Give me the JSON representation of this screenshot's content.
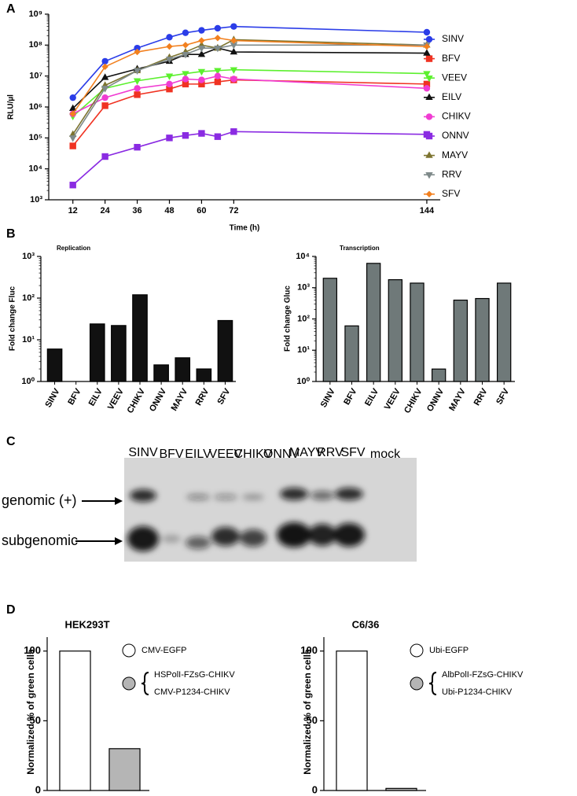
{
  "panel_labels": [
    "A",
    "B",
    "C",
    "D"
  ],
  "chart_data": [
    {
      "type": "line",
      "xlabel": "Time (h)",
      "ylabel": "RLU/µl",
      "yscale": "log",
      "x": [
        12,
        24,
        36,
        48,
        54,
        60,
        66,
        72,
        144
      ],
      "xlim": [
        3,
        149
      ],
      "xticks": [
        12,
        24,
        36,
        48,
        60,
        72,
        144
      ],
      "ylim": [
        1000,
        1000000000
      ],
      "yticks": [
        {
          "value": 1000,
          "label": "10³"
        },
        {
          "value": 10000,
          "label": "10⁴"
        },
        {
          "value": 100000,
          "label": "10⁵"
        },
        {
          "value": 1000000,
          "label": "10⁶"
        },
        {
          "value": 10000000,
          "label": "10⁷"
        },
        {
          "value": 100000000,
          "label": "10⁸"
        },
        {
          "value": 1000000000,
          "label": "10⁹"
        }
      ],
      "series": [
        {
          "name": "SINV",
          "color": "#2b3de8",
          "marker": "circle",
          "values": [
            2000000,
            30000000,
            80000000,
            180000000,
            250000000,
            300000000,
            350000000,
            400000000,
            260000000
          ]
        },
        {
          "name": "BFV",
          "color": "#f03222",
          "marker": "square",
          "values": [
            55000,
            1100000,
            2500000,
            3800000,
            5500000,
            5500000,
            6500000,
            7500000,
            5500000
          ]
        },
        {
          "name": "VEEV",
          "color": "#5cf02e",
          "marker": "triangle-down",
          "values": [
            500000,
            4000000,
            7000000,
            10000000,
            12000000,
            14000000,
            15000000,
            16000000,
            12000000
          ]
        },
        {
          "name": "EILV",
          "color": "#111111",
          "marker": "triangle-up",
          "values": [
            900000,
            9000000,
            17000000,
            30000000,
            50000000,
            50000000,
            80000000,
            60000000,
            55000000
          ]
        },
        {
          "name": "CHIKV",
          "color": "#f03cd2",
          "marker": "circle",
          "values": [
            600000,
            2000000,
            4000000,
            5500000,
            8000000,
            7500000,
            10000000,
            8000000,
            4000000
          ]
        },
        {
          "name": "ONNV",
          "color": "#8a2be2",
          "marker": "square",
          "values": [
            3000,
            25000,
            50000,
            100000,
            120000,
            140000,
            110000,
            160000,
            130000
          ]
        },
        {
          "name": "MAYV",
          "color": "#7d7430",
          "marker": "triangle-up",
          "values": [
            130000,
            5000000,
            15000000,
            40000000,
            60000000,
            100000000,
            80000000,
            150000000,
            100000000
          ]
        },
        {
          "name": "RRV",
          "color": "#7f8a8a",
          "marker": "triangle-down",
          "values": [
            100000,
            4000000,
            15000000,
            35000000,
            50000000,
            80000000,
            80000000,
            100000000,
            100000000
          ]
        },
        {
          "name": "SFV",
          "color": "#f2801f",
          "marker": "diamond",
          "values": [
            600000,
            20000000,
            60000000,
            90000000,
            100000000,
            140000000,
            170000000,
            140000000,
            90000000
          ]
        }
      ]
    },
    {
      "type": "bar",
      "title": "Replication",
      "ylabel": "Fold change Fluc",
      "yscale": "log",
      "color": "#111111",
      "categories": [
        "SINV",
        "BFV",
        "EILV",
        "VEEV",
        "CHIKV",
        "ONNV",
        "MAYV",
        "RRV",
        "SFV"
      ],
      "values": [
        6,
        null,
        24,
        22,
        120,
        2.5,
        3.7,
        2,
        29
      ],
      "ylim": [
        1,
        1000
      ],
      "yticks": [
        {
          "value": 1,
          "label": "10⁰"
        },
        {
          "value": 10,
          "label": "10¹"
        },
        {
          "value": 100,
          "label": "10²"
        },
        {
          "value": 1000,
          "label": "10³"
        }
      ]
    },
    {
      "type": "bar",
      "title": "Transcription",
      "ylabel": "Fold change Gluc",
      "yscale": "log",
      "color": "#6f7979",
      "categories": [
        "SINV",
        "BFV",
        "EILV",
        "VEEV",
        "CHIKV",
        "ONNV",
        "MAYV",
        "RRV",
        "SFV"
      ],
      "values": [
        2000,
        60,
        6000,
        1800,
        1400,
        2.5,
        400,
        450,
        1400
      ],
      "ylim": [
        1,
        10000
      ],
      "yticks": [
        {
          "value": 1,
          "label": "10⁰"
        },
        {
          "value": 10,
          "label": "10¹"
        },
        {
          "value": 100,
          "label": "10²"
        },
        {
          "value": 1000,
          "label": "10³"
        },
        {
          "value": 10000,
          "label": "10⁴"
        }
      ]
    },
    {
      "type": "bar",
      "title": "HEK293T",
      "ylabel": "Normalized % of green cells",
      "categories": [
        null,
        null
      ],
      "values": [
        100,
        30
      ],
      "colors": [
        "#ffffff",
        "#b5b5b5"
      ],
      "ylim": [
        0,
        110
      ],
      "yticks": [
        0,
        50,
        100
      ],
      "legend": [
        [
          "CMV-EGFP"
        ],
        [
          "HSPolI-FZsG-CHIKV",
          "CMV-P1234-CHIKV"
        ]
      ]
    },
    {
      "type": "bar",
      "title": "C6/36",
      "ylabel": "Normalized % of green cells",
      "categories": [
        null,
        null
      ],
      "values": [
        100,
        1.5
      ],
      "colors": [
        "#ffffff",
        "#b5b5b5"
      ],
      "ylim": [
        0,
        110
      ],
      "yticks": [
        0,
        50,
        100
      ],
      "legend": [
        [
          "Ubi-EGFP"
        ],
        [
          "AlbPolI-FZsG-CHIKV",
          "Ubi-P1234-CHIKV"
        ]
      ]
    }
  ],
  "gel": {
    "lanes": [
      "SINV",
      "BFV",
      "EILV",
      "VEEV",
      "CHIKV",
      "ONNV",
      "MAYV",
      "RRV",
      "SFV",
      "mock"
    ],
    "bands": [
      "genomic (+)",
      "subgenomic"
    ]
  }
}
